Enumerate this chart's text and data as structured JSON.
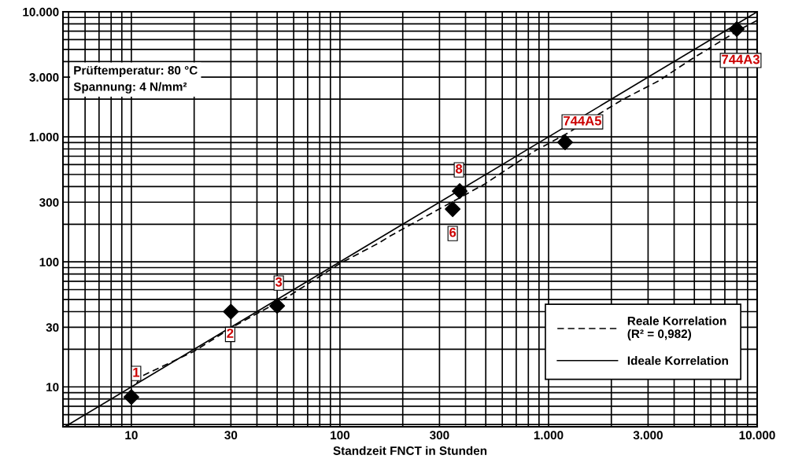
{
  "chart_data": {
    "type": "scatter",
    "xlabel": "Standzeit FNCT in Stunden",
    "log": "xy",
    "grid": true,
    "legend": "bottom right",
    "xlim": [
      4.7,
      10000
    ],
    "ylim": [
      4.8,
      10000
    ],
    "xticks": [
      10,
      30,
      100,
      300,
      {
        "value": 1000,
        "label": "1.000"
      },
      {
        "value": 3000,
        "label": "3.000"
      },
      {
        "value": 10000,
        "label": "10.000"
      }
    ],
    "yticks": [
      10,
      30,
      100,
      300,
      {
        "value": 1000,
        "label": "1.000"
      },
      {
        "value": 3000,
        "label": "3.000"
      },
      {
        "value": 10000,
        "label": "10.000"
      }
    ],
    "series": [
      {
        "color": "#000000",
        "marker": "diamond",
        "x": [
          10,
          30,
          50,
          347,
          375,
          1200,
          7980
        ],
        "values": [
          8.3,
          40,
          44.5,
          264,
          368,
          904,
          7280
        ]
      },
      {
        "type": "line",
        "name": "Reale Korrelation\n(R² = 0,982)",
        "color": "#000000",
        "line_style": "dashed",
        "marker": "none",
        "x": [
          10.6,
          11.1,
          19.9,
          31.4,
          56.5,
          100,
          154,
          174,
          194,
          494,
          846,
          1240,
          2280,
          3370,
          4800,
          8200,
          10000
        ],
        "values": [
          10.7,
          12.1,
          19.2,
          30.9,
          52.9,
          97,
          142,
          161,
          178,
          419,
          760,
          1075,
          2000,
          2800,
          4140,
          7170,
          8530
        ]
      },
      {
        "type": "line",
        "name": "Ideale Korrelation",
        "color": "#000000",
        "line_style": "solid",
        "marker": "none",
        "x": [
          4.8,
          10000
        ],
        "values": [
          4.8,
          10000
        ]
      }
    ],
    "annotations": [
      "Prüftemperatur: 80 °C\nSpannung: 4 N/mm²",
      {
        "text": "1",
        "x": 10,
        "y": 8.3
      },
      {
        "text": "2",
        "x": 30,
        "y": 40
      },
      {
        "text": "3",
        "x": 50,
        "y": 44.5
      },
      {
        "text": "6",
        "x": 347,
        "y": 264
      },
      {
        "text": "8",
        "x": 375,
        "y": 368
      },
      {
        "text": "744A5",
        "x": 1200,
        "y": 904
      },
      {
        "text": "744A3",
        "x": 7980,
        "y": 7280
      }
    ]
  }
}
